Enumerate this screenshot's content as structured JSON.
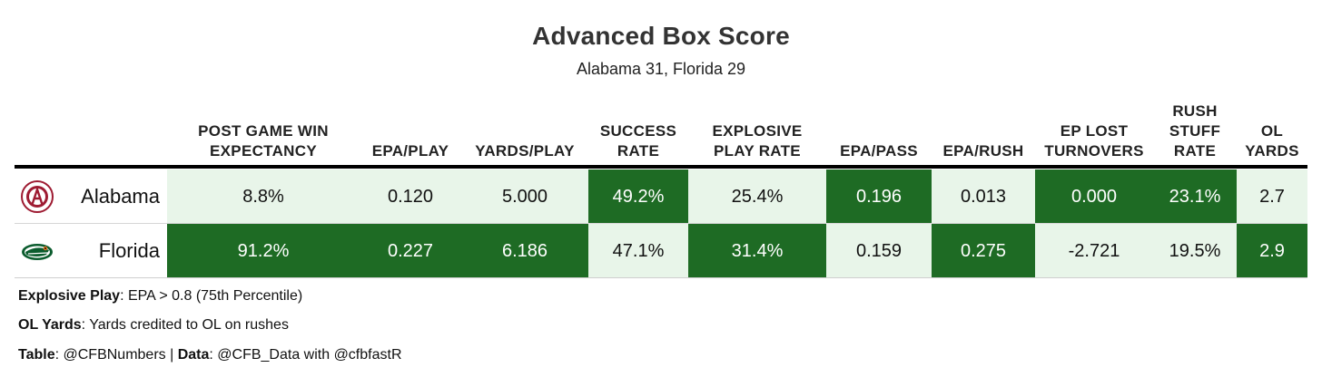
{
  "title": "Advanced Box Score",
  "subtitle": "Alabama 31, Florida 29",
  "colors": {
    "dark": "#1e6b24",
    "light": "#e8f5e9",
    "dark_text": "#ffffff",
    "light_text": "#111111"
  },
  "chart_data": {
    "type": "table",
    "columns": [
      {
        "key": "post_game_win_expectancy",
        "label": "POST GAME WIN\nEXPECTANCY"
      },
      {
        "key": "epa_play",
        "label": "EPA/PLAY"
      },
      {
        "key": "yards_play",
        "label": "YARDS/PLAY"
      },
      {
        "key": "success_rate",
        "label": "SUCCESS\nRATE"
      },
      {
        "key": "explosive_play_rate",
        "label": "EXPLOSIVE\nPLAY RATE"
      },
      {
        "key": "epa_pass",
        "label": "EPA/PASS"
      },
      {
        "key": "epa_rush",
        "label": "EPA/RUSH"
      },
      {
        "key": "ep_lost_turnovers",
        "label": "EP LOST\nTURNOVERS"
      },
      {
        "key": "rush_stuff_rate",
        "label": "RUSH\nSTUFF\nRATE"
      },
      {
        "key": "ol_yards",
        "label": "OL\nYARDS"
      }
    ],
    "rows": [
      {
        "team": "Alabama",
        "logo": "alabama-logo",
        "values": [
          "8.8%",
          "0.120",
          "5.000",
          "49.2%",
          "25.4%",
          "0.196",
          "0.013",
          "0.000",
          "23.1%",
          "2.7"
        ],
        "highlight": [
          false,
          false,
          false,
          true,
          false,
          true,
          false,
          true,
          true,
          false
        ]
      },
      {
        "team": "Florida",
        "logo": "florida-logo",
        "values": [
          "91.2%",
          "0.227",
          "6.186",
          "47.1%",
          "31.4%",
          "0.159",
          "0.275",
          "-2.721",
          "19.5%",
          "2.9"
        ],
        "highlight": [
          true,
          true,
          true,
          false,
          true,
          false,
          true,
          false,
          false,
          true
        ]
      }
    ]
  },
  "footnotes": [
    {
      "label": "Explosive Play",
      "text": ": EPA > 0.8 (75th Percentile)"
    },
    {
      "label": "OL Yards",
      "text": ": Yards credited to OL on rushes"
    },
    {
      "label": "Table",
      "text": ": @CFBNumbers | ",
      "label2": "Data",
      "text2": ": @CFB_Data with @cfbfastR"
    }
  ]
}
